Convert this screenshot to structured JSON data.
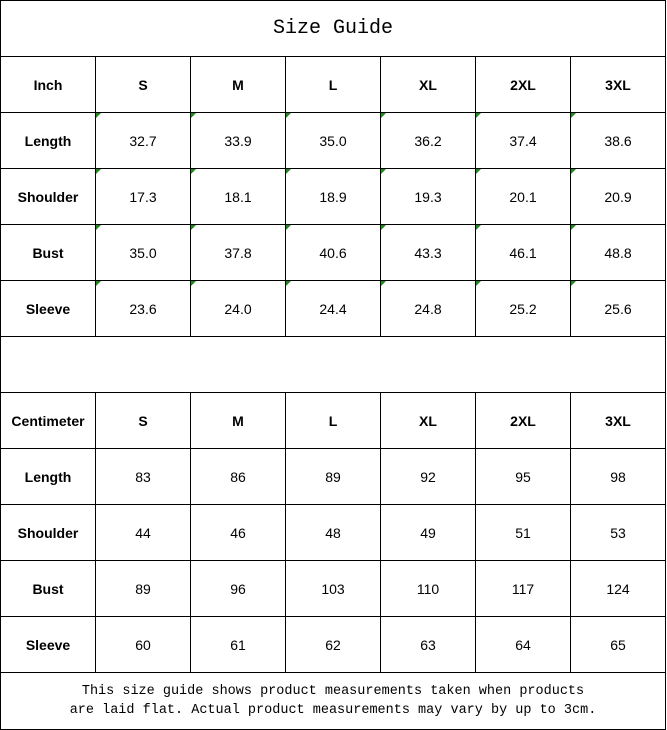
{
  "title": "Size Guide",
  "sizes": [
    "S",
    "M",
    "L",
    "XL",
    "2XL",
    "3XL"
  ],
  "inch": {
    "unit_label": "Inch",
    "rows": [
      {
        "label": "Length",
        "values": [
          "32.7",
          "33.9",
          "35.0",
          "36.2",
          "37.4",
          "38.6"
        ]
      },
      {
        "label": "Shoulder",
        "values": [
          "17.3",
          "18.1",
          "18.9",
          "19.3",
          "20.1",
          "20.9"
        ]
      },
      {
        "label": "Bust",
        "values": [
          "35.0",
          "37.8",
          "40.6",
          "43.3",
          "46.1",
          "48.8"
        ]
      },
      {
        "label": "Sleeve",
        "values": [
          "23.6",
          "24.0",
          "24.4",
          "24.8",
          "25.2",
          "25.6"
        ]
      }
    ]
  },
  "centimeter": {
    "unit_label": "Centimeter",
    "rows": [
      {
        "label": "Length",
        "values": [
          "83",
          "86",
          "89",
          "92",
          "95",
          "98"
        ]
      },
      {
        "label": "Shoulder",
        "values": [
          "44",
          "46",
          "48",
          "49",
          "51",
          "53"
        ]
      },
      {
        "label": "Bust",
        "values": [
          "89",
          "96",
          "103",
          "110",
          "117",
          "124"
        ]
      },
      {
        "label": "Sleeve",
        "values": [
          "60",
          "61",
          "62",
          "63",
          "64",
          "65"
        ]
      }
    ]
  },
  "note_line1": "This size guide shows product measurements taken when products",
  "note_line2": "are laid flat. Actual product measurements may vary by up to 3cm.",
  "colors": {
    "border": "#000000",
    "flag": "#1a8a1a"
  }
}
